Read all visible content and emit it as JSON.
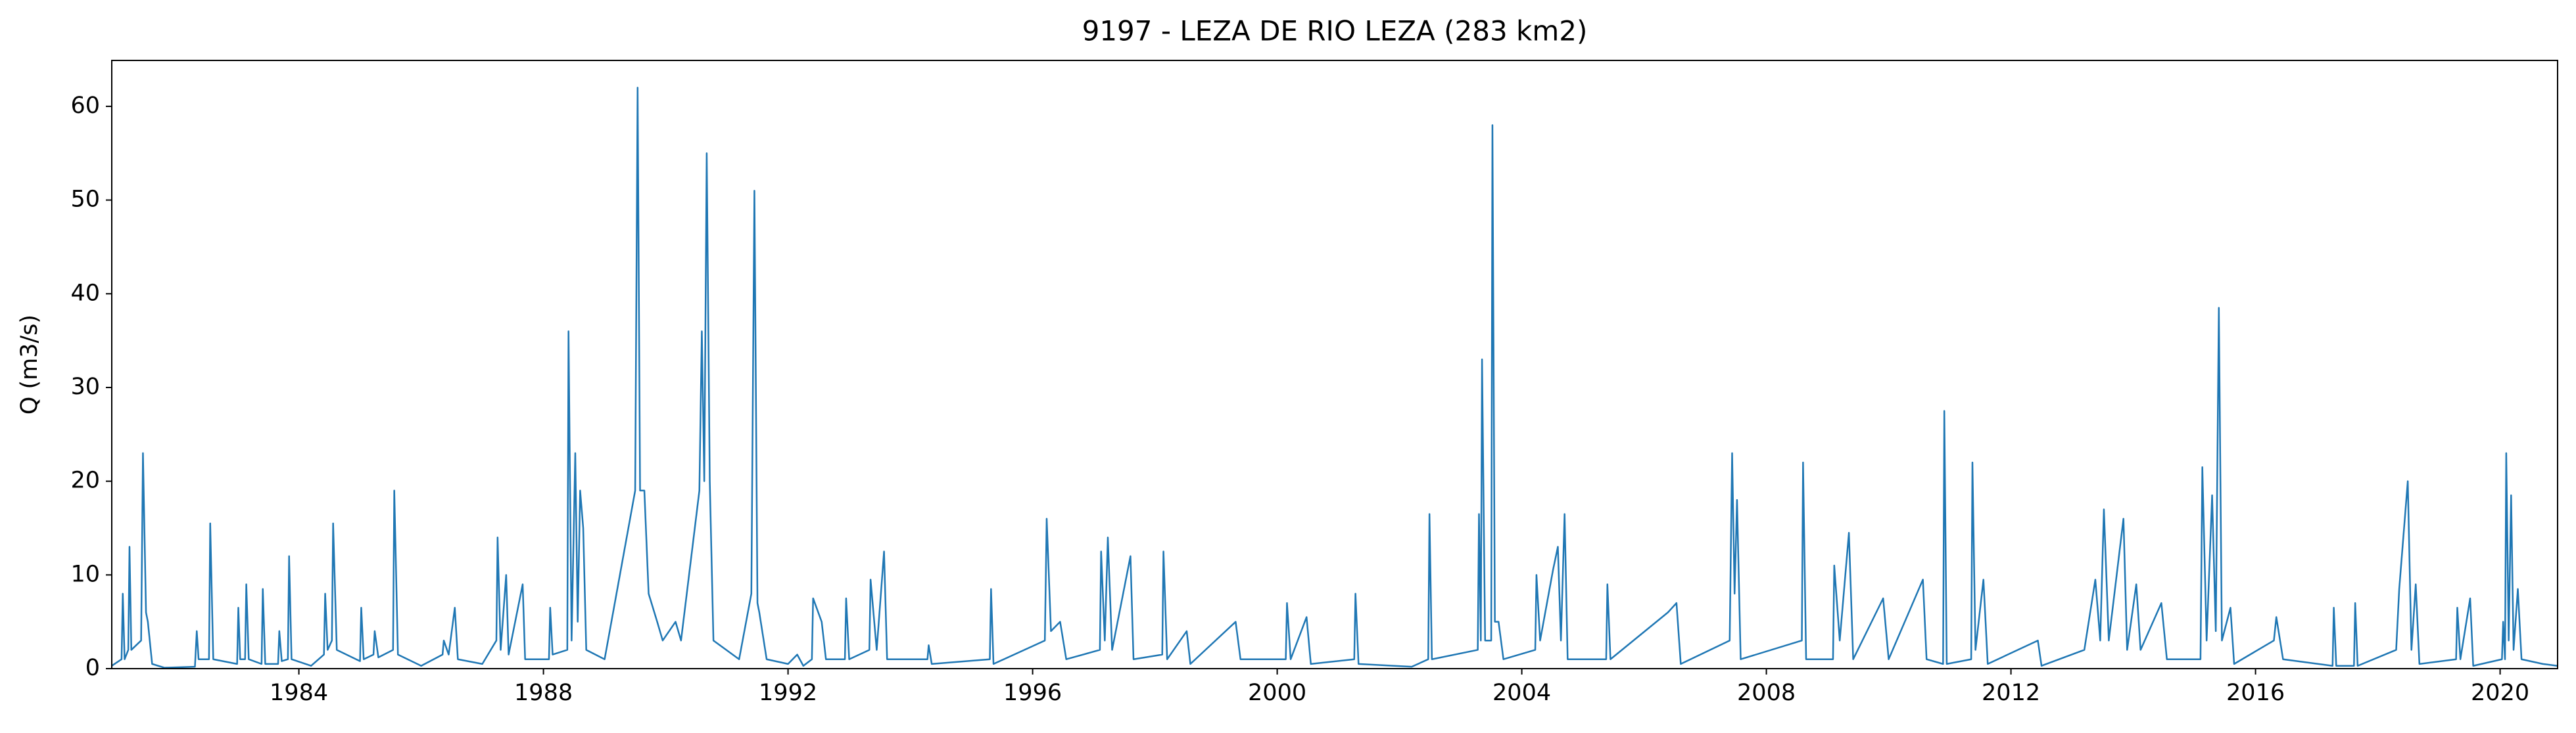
{
  "chart_data": {
    "type": "line",
    "title": "9197 - LEZA DE RIO LEZA (283 km2)",
    "y_label": "Q (m3/s)",
    "color": "#1f77b4",
    "x": [
      1980.94,
      1981.1,
      1981.12,
      1981.15,
      1981.21,
      1981.23,
      1981.26,
      1981.42,
      1981.45,
      1981.5,
      1981.53,
      1981.6,
      1981.8,
      1982.3,
      1982.33,
      1982.36,
      1982.53,
      1982.55,
      1982.6,
      1982.99,
      1983.01,
      1983.04,
      1983.12,
      1983.14,
      1983.18,
      1983.39,
      1983.41,
      1983.45,
      1983.66,
      1983.68,
      1983.72,
      1983.82,
      1983.84,
      1983.88,
      1984.2,
      1984.41,
      1984.43,
      1984.47,
      1984.54,
      1984.56,
      1984.62,
      1985.0,
      1985.02,
      1985.06,
      1985.22,
      1985.24,
      1985.3,
      1985.54,
      1985.56,
      1985.62,
      1986.0,
      1986.35,
      1986.37,
      1986.45,
      1986.55,
      1986.6,
      1987.0,
      1987.23,
      1987.25,
      1987.3,
      1987.39,
      1987.43,
      1987.66,
      1987.7,
      1988.09,
      1988.11,
      1988.15,
      1988.39,
      1988.41,
      1988.46,
      1988.52,
      1988.56,
      1988.6,
      1988.65,
      1988.7,
      1989.0,
      1989.5,
      1989.54,
      1989.58,
      1989.65,
      1989.72,
      1989.86,
      1989.95,
      1990.16,
      1990.25,
      1990.55,
      1990.59,
      1990.63,
      1990.67,
      1990.72,
      1990.78,
      1991.2,
      1991.4,
      1991.45,
      1991.5,
      1991.53,
      1991.65,
      1992.0,
      1992.15,
      1992.25,
      1992.39,
      1992.41,
      1992.55,
      1992.62,
      1992.93,
      1992.95,
      1993.0,
      1993.33,
      1993.35,
      1993.45,
      1993.57,
      1993.62,
      1994.28,
      1994.3,
      1994.35,
      1995.3,
      1995.32,
      1995.36,
      1996.2,
      1996.23,
      1996.3,
      1996.45,
      1996.55,
      1997.1,
      1997.12,
      1997.18,
      1997.23,
      1997.3,
      1997.6,
      1997.65,
      1998.12,
      1998.14,
      1998.2,
      1998.52,
      1998.58,
      1999.32,
      1999.4,
      2000.14,
      2000.16,
      2000.22,
      2000.48,
      2000.55,
      2001.26,
      2001.28,
      2001.33,
      2002.2,
      2002.47,
      2002.49,
      2002.53,
      2003.28,
      2003.3,
      2003.33,
      2003.35,
      2003.4,
      2003.5,
      2003.52,
      2003.56,
      2003.62,
      2003.7,
      2004.22,
      2004.24,
      2004.3,
      2004.51,
      2004.59,
      2004.64,
      2004.7,
      2004.75,
      2005.38,
      2005.4,
      2005.45,
      2006.39,
      2006.53,
      2006.6,
      2007.4,
      2007.44,
      2007.48,
      2007.52,
      2007.58,
      2008.58,
      2008.6,
      2008.65,
      2009.09,
      2009.11,
      2009.2,
      2009.35,
      2009.42,
      2009.91,
      2010.0,
      2010.56,
      2010.62,
      2010.89,
      2010.91,
      2010.95,
      2011.35,
      2011.37,
      2011.42,
      2011.55,
      2011.62,
      2012.44,
      2012.5,
      2013.2,
      2013.38,
      2013.46,
      2013.52,
      2013.6,
      2013.84,
      2013.9,
      2014.05,
      2014.12,
      2014.46,
      2014.55,
      2015.1,
      2015.13,
      2015.2,
      2015.29,
      2015.35,
      2015.4,
      2015.45,
      2015.59,
      2015.65,
      2016.3,
      2016.34,
      2016.45,
      2017.26,
      2017.28,
      2017.32,
      2017.61,
      2017.63,
      2017.67,
      2018.3,
      2018.35,
      2018.49,
      2018.55,
      2018.62,
      2018.68,
      2019.28,
      2019.3,
      2019.35,
      2019.51,
      2019.56,
      2020.03,
      2020.05,
      2020.08,
      2020.1,
      2020.14,
      2020.18,
      2020.22,
      2020.29,
      2020.35,
      2020.7,
      2020.94
    ],
    "values": [
      0.3,
      1,
      8,
      1,
      2,
      13,
      2,
      3,
      23,
      6,
      5,
      0.5,
      0.1,
      0.2,
      4,
      1,
      1,
      15.5,
      1,
      0.5,
      6.5,
      1,
      1,
      9,
      1,
      0.5,
      8.5,
      0.5,
      0.5,
      4,
      0.8,
      1,
      12,
      1,
      0.3,
      1.5,
      8,
      2,
      3,
      15.5,
      2,
      0.8,
      6.5,
      1,
      1.5,
      4,
      1.2,
      2,
      19,
      1.5,
      0.3,
      1.5,
      3,
      1.5,
      6.5,
      1,
      0.5,
      3,
      14,
      2,
      10,
      1.5,
      9,
      1,
      1,
      6.5,
      1.5,
      2,
      36,
      3,
      23,
      5,
      19,
      15,
      2,
      1,
      19,
      62,
      19,
      19,
      8,
      5,
      3,
      5,
      3,
      19,
      36,
      20,
      55,
      20,
      3,
      1,
      8,
      51,
      7,
      6,
      1,
      0.5,
      1.5,
      0.3,
      1,
      7.5,
      5,
      1,
      1,
      7.5,
      1,
      2,
      9.5,
      2,
      12.5,
      1,
      1,
      2.5,
      0.5,
      1,
      8.5,
      0.5,
      3,
      16,
      4,
      5,
      1,
      2,
      12.5,
      3,
      14,
      2,
      12,
      1,
      1.5,
      12.5,
      1,
      4,
      0.5,
      5,
      1,
      1,
      7,
      1,
      5.5,
      0.5,
      1,
      8,
      0.5,
      0.2,
      1,
      16.5,
      1,
      2,
      16.5,
      3,
      33,
      3,
      3,
      58,
      5,
      5,
      1,
      2,
      10,
      3,
      10.5,
      13,
      3,
      16.5,
      1,
      1,
      9,
      1,
      6,
      7,
      0.5,
      3,
      23,
      8,
      18,
      1,
      3,
      22,
      1,
      1,
      11,
      3,
      14.5,
      1,
      7.5,
      1,
      9.5,
      1,
      0.5,
      27.5,
      0.5,
      1,
      22,
      2,
      9.5,
      0.5,
      3,
      0.3,
      2,
      9.5,
      3,
      17,
      3,
      16,
      2,
      9,
      2,
      7,
      1,
      1,
      21.5,
      3,
      18.5,
      4,
      38.5,
      3,
      6.5,
      0.5,
      3,
      5.5,
      1,
      0.3,
      6.5,
      0.3,
      0.3,
      7,
      0.3,
      2,
      8.5,
      20,
      2,
      9,
      0.5,
      1,
      6.5,
      1,
      7.5,
      0.3,
      1,
      5,
      1,
      23,
      3,
      18.5,
      2,
      8.5,
      1,
      0.5,
      0.3
    ],
    "xlim": [
      1980.94,
      2020.94
    ],
    "xticks": [
      1984,
      1988,
      1992,
      1996,
      2000,
      2004,
      2008,
      2012,
      2016,
      2020
    ],
    "ylim": [
      0,
      64.9
    ],
    "yticks": [
      0,
      10,
      20,
      30,
      40,
      50,
      60
    ],
    "grid": false
  }
}
